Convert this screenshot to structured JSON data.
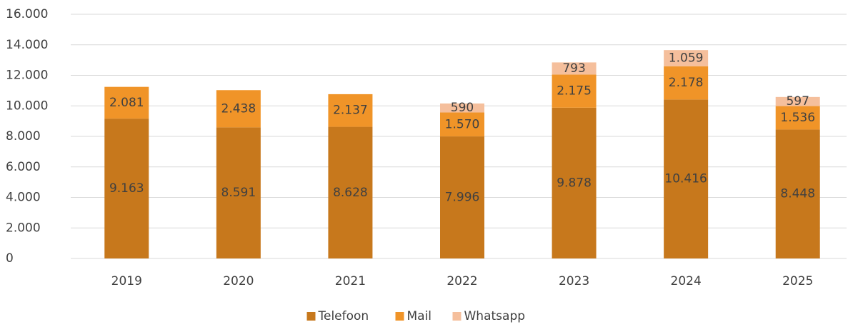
{
  "chart_data": {
    "type": "stacked_bar",
    "categories": [
      "2019",
      "2020",
      "2021",
      "2022",
      "2023",
      "2024",
      "2025"
    ],
    "series": [
      {
        "name": "Telefoon",
        "color": "#c7781c",
        "values": [
          9163,
          8591,
          8628,
          7996,
          9878,
          10416,
          8448
        ],
        "value_labels": [
          "9.163",
          "8.591",
          "8.628",
          "7.996",
          "9.878",
          "10.416",
          "8.448"
        ]
      },
      {
        "name": "Mail",
        "color": "#f09428",
        "values": [
          2081,
          2438,
          2137,
          1570,
          2175,
          2178,
          1536
        ],
        "value_labels": [
          "2.081",
          "2.438",
          "2.137",
          "1.570",
          "2.175",
          "2.178",
          "1.536"
        ]
      },
      {
        "name": "Whatsapp",
        "color": "#f5bf9c",
        "values": [
          null,
          null,
          null,
          590,
          793,
          1059,
          597
        ],
        "value_labels": [
          null,
          null,
          null,
          "590",
          "793",
          "1.059",
          "597"
        ]
      }
    ],
    "ylim": [
      0,
      16000
    ],
    "yticks": [
      0,
      {
        "value": 2000,
        "label": "2.000"
      },
      {
        "value": 4000,
        "label": "4.000"
      },
      {
        "value": 6000,
        "label": "6.000"
      },
      {
        "value": 8000,
        "label": "8.000"
      },
      {
        "value": 10000,
        "label": "10.000"
      },
      {
        "value": 12000,
        "label": "12.000"
      },
      {
        "value": 14000,
        "label": "14.000"
      },
      {
        "value": 16000,
        "label": "16.000"
      }
    ],
    "grid": true,
    "legend": "bottom"
  }
}
